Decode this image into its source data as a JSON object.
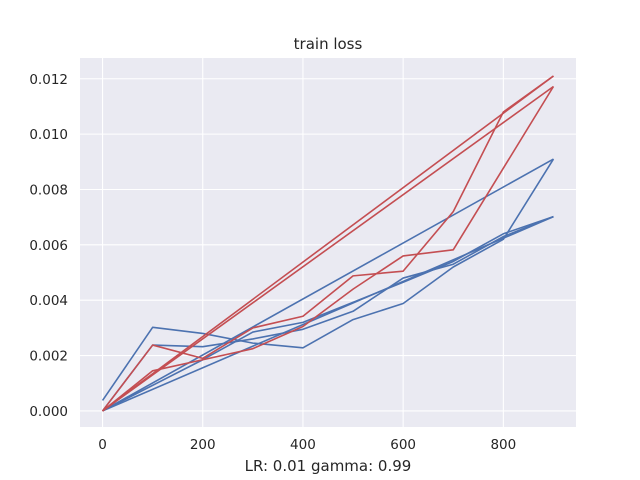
{
  "chart_data": {
    "type": "line",
    "title": "train loss",
    "xlabel": "LR: 0.01 gamma: 0.99",
    "ylabel": "",
    "xlim": [
      -45,
      945
    ],
    "ylim": [
      -0.00058,
      0.01275
    ],
    "xticks": [
      0,
      200,
      400,
      600,
      800
    ],
    "xtick_labels": [
      "0",
      "200",
      "400",
      "600",
      "800"
    ],
    "yticks": [
      0.0,
      0.002,
      0.004,
      0.006,
      0.008,
      0.01,
      0.012
    ],
    "ytick_labels": [
      "0.000",
      "0.002",
      "0.004",
      "0.006",
      "0.008",
      "0.010",
      "0.012"
    ],
    "grid": true,
    "legend": "none",
    "colors": {
      "background": "#eaeaf2",
      "grid": "#ffffff",
      "blue": "#4c72b0",
      "red": "#c44e52"
    },
    "series": [
      {
        "color": "blue",
        "x": [
          0,
          100,
          200,
          300,
          400,
          500,
          600,
          700,
          800,
          900
        ],
        "y": [
          0.00038,
          0.00302,
          0.0028,
          0.00245,
          0.00228,
          0.0033,
          0.00388,
          0.0052,
          0.0062,
          0.0091
        ]
      },
      {
        "color": "blue",
        "x": [
          0,
          100,
          200,
          300,
          400,
          500,
          600,
          700,
          800,
          900
        ],
        "y": [
          0.0,
          0.00238,
          0.00232,
          0.0026,
          0.00295,
          0.0036,
          0.0048,
          0.0053,
          0.0063,
          0.00702
        ]
      },
      {
        "color": "blue",
        "x": [
          0,
          200,
          300,
          400,
          600,
          700,
          800,
          900
        ],
        "y": [
          0.0,
          0.00185,
          0.00285,
          0.0032,
          0.00465,
          0.0054,
          0.0064,
          0.00702
        ]
      },
      {
        "color": "blue",
        "x": [
          0,
          900
        ],
        "y": [
          0.0,
          0.0091
        ]
      },
      {
        "color": "blue",
        "x": [
          0,
          900
        ],
        "y": [
          0.0,
          0.00702
        ]
      },
      {
        "color": "red",
        "x": [
          0,
          100,
          200,
          300,
          400,
          500,
          600,
          700,
          800,
          900
        ],
        "y": [
          0.0,
          0.00238,
          0.0019,
          0.003,
          0.00342,
          0.00488,
          0.00505,
          0.0072,
          0.0108,
          0.0121
        ]
      },
      {
        "color": "red",
        "x": [
          0,
          100,
          200,
          300,
          400,
          500,
          600,
          700,
          900
        ],
        "y": [
          0.0,
          0.00145,
          0.00185,
          0.00225,
          0.00305,
          0.0044,
          0.0056,
          0.00582,
          0.01172
        ]
      },
      {
        "color": "red",
        "x": [
          0,
          900
        ],
        "y": [
          0.0,
          0.0121
        ]
      },
      {
        "color": "red",
        "x": [
          0,
          900
        ],
        "y": [
          0.0,
          0.01172
        ]
      }
    ]
  }
}
